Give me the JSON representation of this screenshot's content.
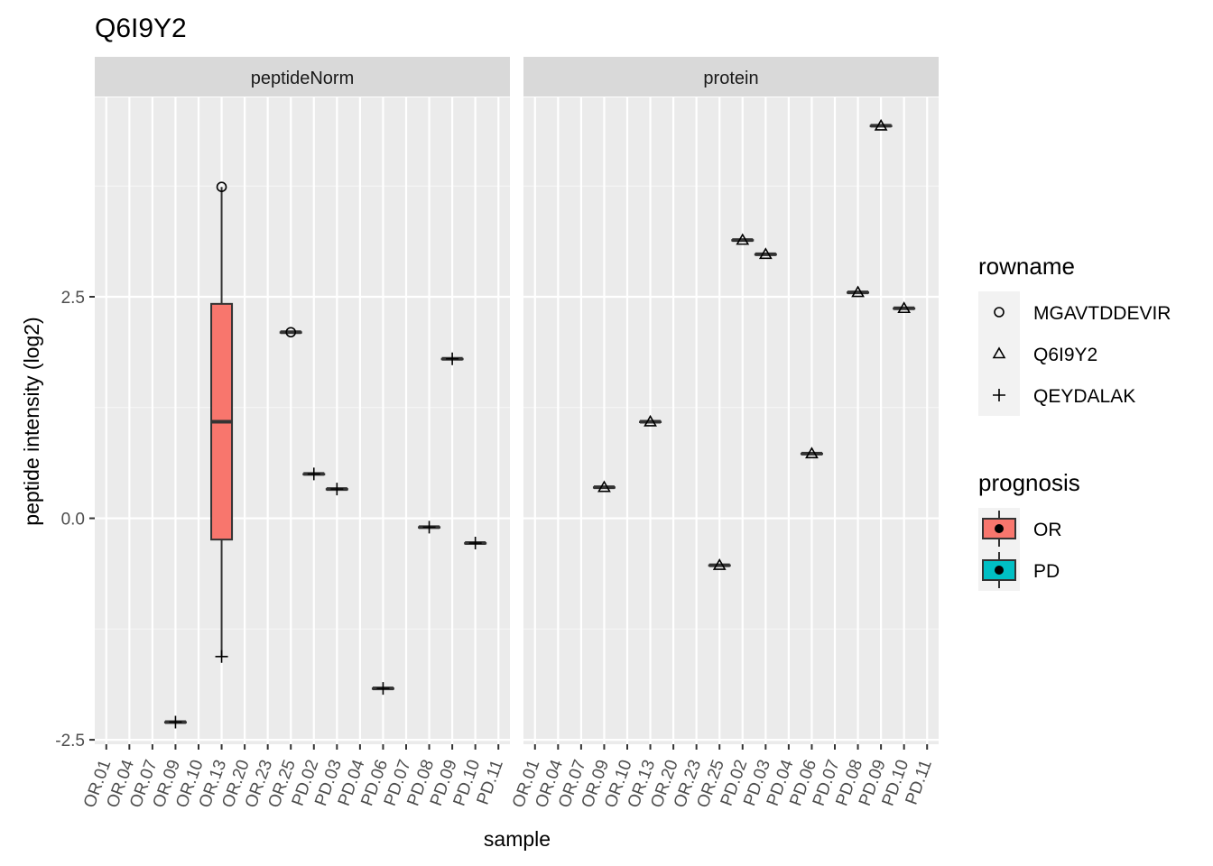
{
  "chart_data": {
    "type": "box",
    "title": "Q6I9Y2",
    "xlabel": "sample",
    "ylabel": "peptide intensity (log2)",
    "ylim": [
      -2.55,
      4.75
    ],
    "yticks": [
      -2.5,
      0.0,
      2.5
    ],
    "ytick_labels": [
      "-2.5",
      "0.0",
      "2.5"
    ],
    "categories": [
      "OR.01",
      "OR.04",
      "OR.07",
      "OR.09",
      "OR.10",
      "OR.13",
      "OR.20",
      "OR.23",
      "OR.25",
      "PD.02",
      "PD.03",
      "PD.04",
      "PD.06",
      "PD.07",
      "PD.08",
      "PD.09",
      "PD.10",
      "PD.11"
    ],
    "legends": {
      "rowname": {
        "title": "rowname",
        "items": [
          {
            "label": "MGAVTDDEVIR",
            "shape": "circle"
          },
          {
            "label": "Q6I9Y2",
            "shape": "triangle"
          },
          {
            "label": "QEYDALAK",
            "shape": "plus"
          }
        ]
      },
      "prognosis": {
        "title": "prognosis",
        "items": [
          {
            "label": "OR",
            "color": "#F8766D"
          },
          {
            "label": "PD",
            "color": "#00BFC4"
          }
        ]
      }
    },
    "panels": [
      {
        "strip": "peptideNorm",
        "boxes": [
          {
            "sample": "OR.09",
            "prognosis": "OR",
            "q1": -2.3,
            "median": -2.3,
            "q3": -2.3,
            "whisker_low": -2.3,
            "whisker_high": -2.3
          },
          {
            "sample": "OR.13",
            "prognosis": "OR",
            "q1": -0.24,
            "median": 1.09,
            "q3": 2.42,
            "whisker_low": -1.56,
            "whisker_high": 3.74
          },
          {
            "sample": "OR.25",
            "prognosis": "OR",
            "q1": 2.1,
            "median": 2.1,
            "q3": 2.1,
            "whisker_low": 2.1,
            "whisker_high": 2.1
          },
          {
            "sample": "PD.02",
            "prognosis": "PD",
            "q1": 0.5,
            "median": 0.5,
            "q3": 0.5,
            "whisker_low": 0.5,
            "whisker_high": 0.5
          },
          {
            "sample": "PD.03",
            "prognosis": "PD",
            "q1": 0.33,
            "median": 0.33,
            "q3": 0.33,
            "whisker_low": 0.33,
            "whisker_high": 0.33
          },
          {
            "sample": "PD.06",
            "prognosis": "PD",
            "q1": -1.92,
            "median": -1.92,
            "q3": -1.92,
            "whisker_low": -1.92,
            "whisker_high": -1.92
          },
          {
            "sample": "PD.08",
            "prognosis": "PD",
            "q1": -0.1,
            "median": -0.1,
            "q3": -0.1,
            "whisker_low": -0.1,
            "whisker_high": -0.1
          },
          {
            "sample": "PD.09",
            "prognosis": "PD",
            "q1": 1.8,
            "median": 1.8,
            "q3": 1.8,
            "whisker_low": 1.8,
            "whisker_high": 1.8
          },
          {
            "sample": "PD.10",
            "prognosis": "PD",
            "q1": -0.28,
            "median": -0.28,
            "q3": -0.28,
            "whisker_low": -0.28,
            "whisker_high": -0.28
          }
        ],
        "points": [
          {
            "sample": "OR.09",
            "y": -2.3,
            "shape": "plus"
          },
          {
            "sample": "OR.13",
            "y": 3.74,
            "shape": "circle"
          },
          {
            "sample": "OR.13",
            "y": -1.56,
            "shape": "plus"
          },
          {
            "sample": "OR.25",
            "y": 2.1,
            "shape": "circle"
          },
          {
            "sample": "PD.02",
            "y": 0.5,
            "shape": "plus"
          },
          {
            "sample": "PD.03",
            "y": 0.33,
            "shape": "plus"
          },
          {
            "sample": "PD.06",
            "y": -1.92,
            "shape": "plus"
          },
          {
            "sample": "PD.08",
            "y": -0.1,
            "shape": "plus"
          },
          {
            "sample": "PD.09",
            "y": 1.8,
            "shape": "plus"
          },
          {
            "sample": "PD.10",
            "y": -0.28,
            "shape": "plus"
          }
        ]
      },
      {
        "strip": "protein",
        "boxes": [
          {
            "sample": "OR.09",
            "prognosis": "OR",
            "q1": 0.35,
            "median": 0.35,
            "q3": 0.35,
            "whisker_low": 0.35,
            "whisker_high": 0.35
          },
          {
            "sample": "OR.13",
            "prognosis": "OR",
            "q1": 1.09,
            "median": 1.09,
            "q3": 1.09,
            "whisker_low": 1.09,
            "whisker_high": 1.09
          },
          {
            "sample": "OR.25",
            "prognosis": "OR",
            "q1": -0.53,
            "median": -0.53,
            "q3": -0.53,
            "whisker_low": -0.53,
            "whisker_high": -0.53
          },
          {
            "sample": "PD.02",
            "prognosis": "PD",
            "q1": 3.14,
            "median": 3.14,
            "q3": 3.14,
            "whisker_low": 3.14,
            "whisker_high": 3.14
          },
          {
            "sample": "PD.03",
            "prognosis": "PD",
            "q1": 2.98,
            "median": 2.98,
            "q3": 2.98,
            "whisker_low": 2.98,
            "whisker_high": 2.98
          },
          {
            "sample": "PD.06",
            "prognosis": "PD",
            "q1": 0.73,
            "median": 0.73,
            "q3": 0.73,
            "whisker_low": 0.73,
            "whisker_high": 0.73
          },
          {
            "sample": "PD.08",
            "prognosis": "PD",
            "q1": 2.55,
            "median": 2.55,
            "q3": 2.55,
            "whisker_low": 2.55,
            "whisker_high": 2.55
          },
          {
            "sample": "PD.09",
            "prognosis": "PD",
            "q1": 4.43,
            "median": 4.43,
            "q3": 4.43,
            "whisker_low": 4.43,
            "whisker_high": 4.43
          },
          {
            "sample": "PD.10",
            "prognosis": "PD",
            "q1": 2.37,
            "median": 2.37,
            "q3": 2.37,
            "whisker_low": 2.37,
            "whisker_high": 2.37
          }
        ],
        "points": [
          {
            "sample": "OR.09",
            "y": 0.35,
            "shape": "triangle"
          },
          {
            "sample": "OR.13",
            "y": 1.09,
            "shape": "triangle"
          },
          {
            "sample": "OR.25",
            "y": -0.53,
            "shape": "triangle"
          },
          {
            "sample": "PD.02",
            "y": 3.14,
            "shape": "triangle"
          },
          {
            "sample": "PD.03",
            "y": 2.98,
            "shape": "triangle"
          },
          {
            "sample": "PD.06",
            "y": 0.73,
            "shape": "triangle"
          },
          {
            "sample": "PD.08",
            "y": 2.55,
            "shape": "triangle"
          },
          {
            "sample": "PD.09",
            "y": 4.43,
            "shape": "triangle"
          },
          {
            "sample": "PD.10",
            "y": 2.37,
            "shape": "triangle"
          }
        ]
      }
    ]
  }
}
